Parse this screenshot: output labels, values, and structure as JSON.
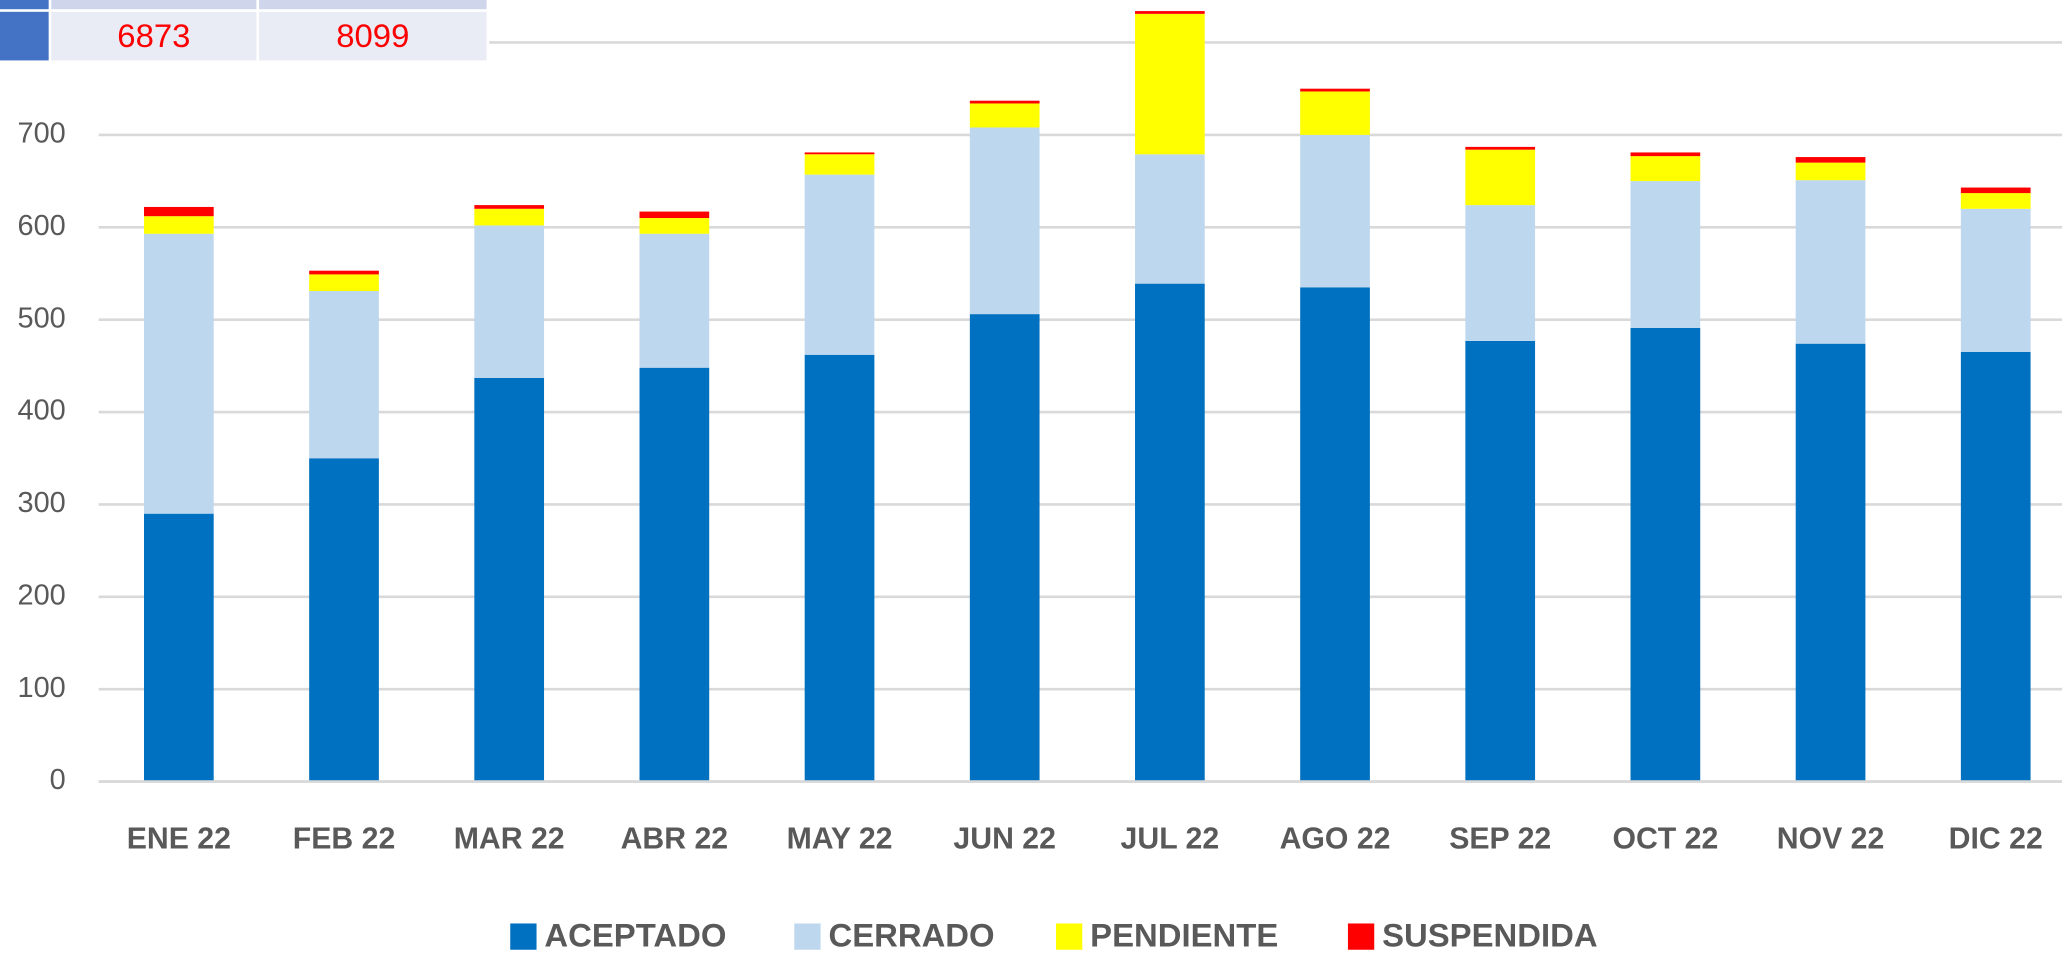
{
  "chart_data": {
    "type": "stacked_bar",
    "categories": [
      "ENE 22",
      "FEB 22",
      "MAR 22",
      "ABR 22",
      "MAY 22",
      "JUN 22",
      "JUL 22",
      "AGO 22",
      "SEP 22",
      "OCT 22",
      "NOV 22",
      "DIC 22"
    ],
    "series": [
      {
        "name": "ACEPTADO",
        "color": "#0070c0",
        "values": [
          290,
          350,
          437,
          448,
          462,
          506,
          539,
          535,
          477,
          491,
          474,
          465
        ]
      },
      {
        "name": "CERRADO",
        "color": "#bdd7ee",
        "values": [
          303,
          181,
          165,
          145,
          195,
          202,
          140,
          165,
          147,
          159,
          177,
          155
        ]
      },
      {
        "name": "PENDIENTE",
        "color": "#ffff00",
        "values": [
          19,
          18,
          18,
          17,
          22,
          26,
          152,
          47,
          60,
          27,
          19,
          17
        ]
      },
      {
        "name": "SUSPENDIDA",
        "color": "#ff0000",
        "values": [
          10,
          4,
          4,
          7,
          2,
          3,
          3,
          3,
          3,
          4,
          6,
          6
        ]
      }
    ],
    "ylim": [
      0,
      846
    ],
    "yticks": [
      0,
      100,
      200,
      300,
      400,
      500,
      600,
      700,
      800
    ],
    "grid": true,
    "legend": "bottom"
  },
  "table": {
    "rows": [
      [
        "6873",
        "8099"
      ]
    ]
  }
}
